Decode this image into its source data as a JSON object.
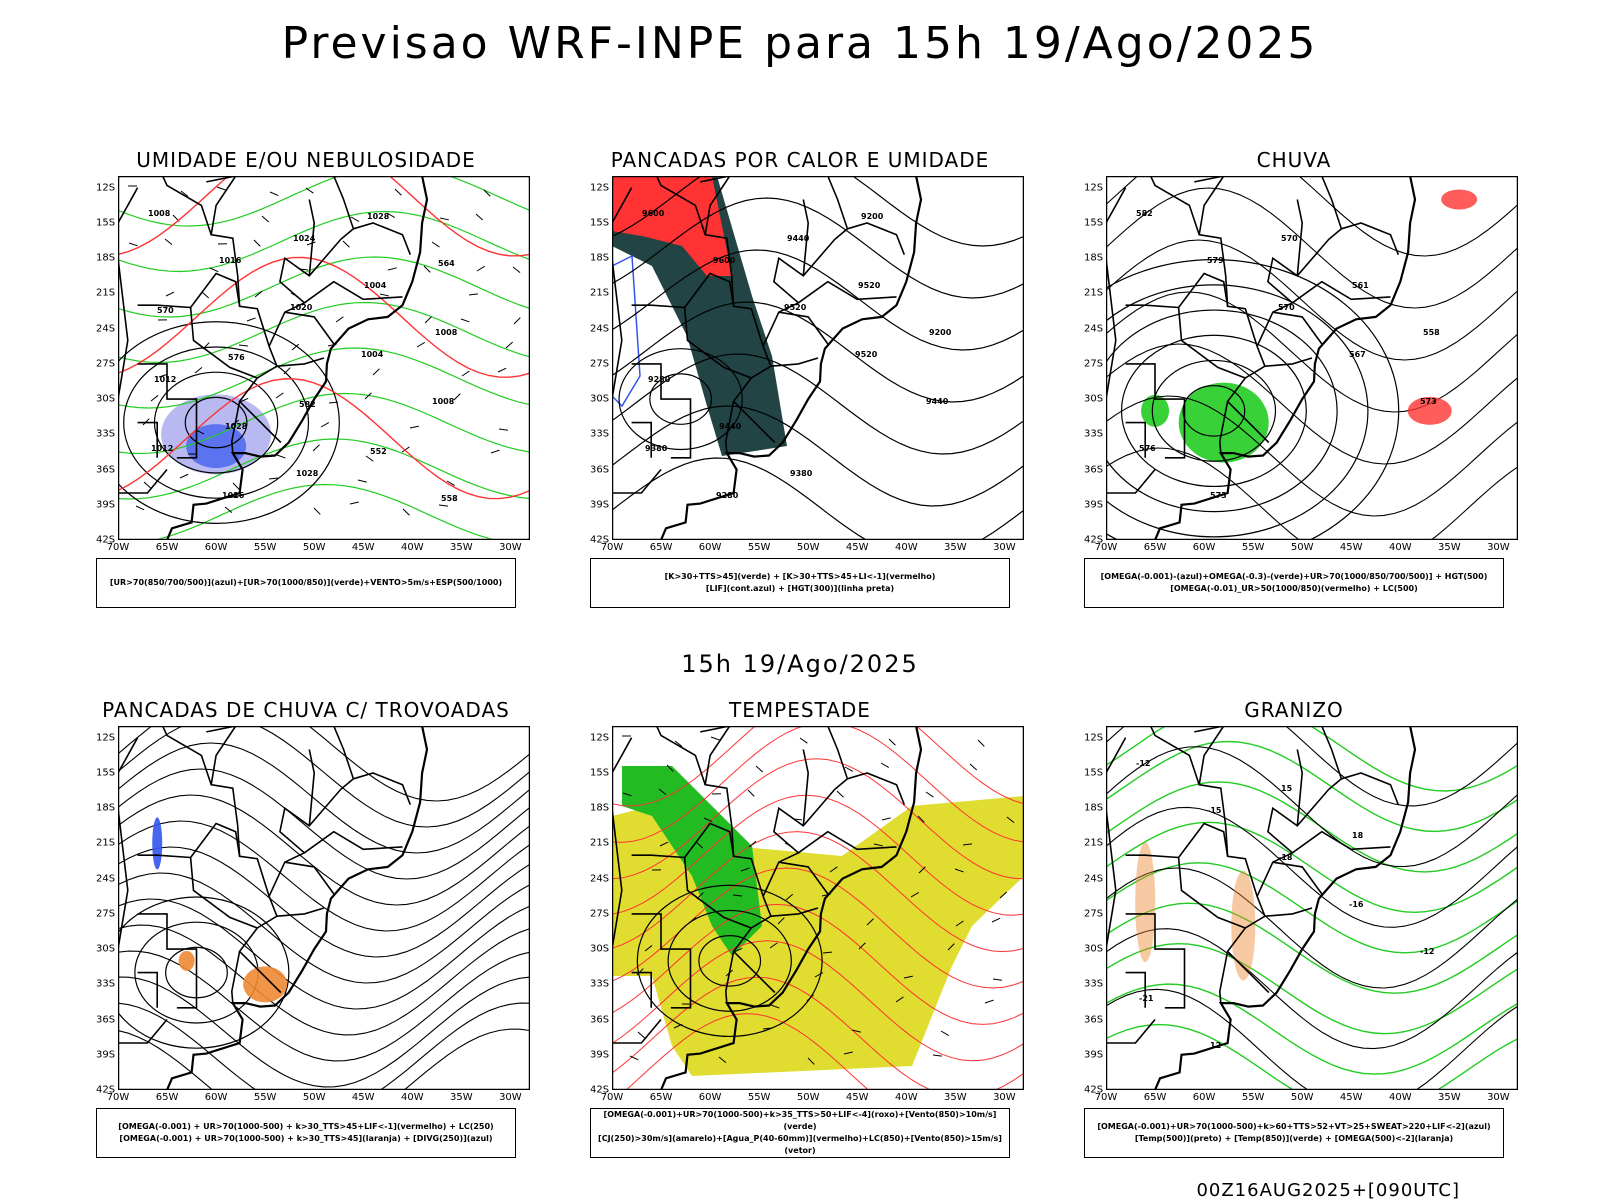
{
  "header": {
    "title": "Previsao WRF-INPE  para 15h 19/Ago/2025",
    "mid_title": "15h 19/Ago/2025",
    "footer_stamp": "00Z16AUG2025+[090UTC]"
  },
  "axes": {
    "lat_labels": [
      "12S",
      "15S",
      "18S",
      "21S",
      "24S",
      "27S",
      "30S",
      "33S",
      "36S",
      "39S",
      "42S"
    ],
    "lon_labels": [
      "70W",
      "65W",
      "60W",
      "55W",
      "50W",
      "45W",
      "40W",
      "35W",
      "30W"
    ]
  },
  "colors": {
    "green": "#22cc22",
    "red": "#ff3333",
    "blue": "#3355ee",
    "lavender": "#a8a8ee",
    "darkteal": "#224444",
    "yellow": "#e0dc30",
    "orange": "#ee8833",
    "black": "#000000"
  },
  "panels": [
    {
      "id": "umidade",
      "title": "UMIDADE E/OU NEBULOSIDADE",
      "legend": [
        "[UR>70(850/700/500)](azul)+[UR>70(1000/850)](verde)+VENTO>5m/s+ESP(500/1000)"
      ],
      "contour_labels": [
        "1008",
        "1016",
        "1020",
        "1004",
        "1008",
        "1012",
        "1016",
        "1024",
        "1004",
        "1008",
        "1012",
        "1028",
        "1028",
        "1028",
        "564",
        "570",
        "576",
        "582",
        "552",
        "558"
      ]
    },
    {
      "id": "pancadas",
      "title": "PANCADAS POR CALOR E UMIDADE",
      "legend": [
        "[K>30+TTS>45](verde) + [K>30+TTS>45+LI<-1](vermelho)",
        "[LIF](cont.azul) + [HGT(300)](linha preta)"
      ],
      "contour_labels": [
        "9600",
        "9600",
        "9520",
        "9520",
        "9440",
        "9380",
        "9280",
        "9440",
        "9520",
        "9200",
        "9280",
        "9440",
        "9380",
        "9200"
      ]
    },
    {
      "id": "chuva",
      "title": "CHUVA",
      "legend": [
        "[OMEGA(-0.001)-(azul)+OMEGA(-0.3)-(verde)+UR>70(1000/850/700/500)] + HGT(500)",
        "[OMEGA(-0.01)_UR>50(1000/850)(vermelho) + LC(500)"
      ],
      "contour_labels": [
        "582",
        "579",
        "570",
        "567",
        "573",
        "576",
        "573",
        "570",
        "561",
        "558"
      ]
    },
    {
      "id": "trovoadas",
      "title": "PANCADAS DE CHUVA C/ TROVOADAS",
      "legend": [
        "[OMEGA(-0.001) + UR>70(1000-500) + k>30_TTS>45+LIF<-1](vermelho) + LC(250)",
        "[OMEGA(-0.001) + UR>70(1000-500) + k>30_TTS>45](laranja) + [DIVG(250)](azul)"
      ],
      "contour_labels": []
    },
    {
      "id": "tempestade",
      "title": "TEMPESTADE",
      "legend": [
        "[OMEGA(-0.001)+UR>70(1000-500)+k>35_TTS>50+LIF<-4](roxo)+[Vento(850)>10m/s](verde)",
        "[CJ(250)>30m/s](amarelo)+[Agua_P(40-60mm)](vermelho)+LC(850)+[Vento(850)>15m/s](vetor)"
      ],
      "contour_labels": []
    },
    {
      "id": "granizo",
      "title": "GRANIZO",
      "legend": [
        "[OMEGA(-0.001)+UR>70(1000-500)+k>60+TTS>52+VT>25+SWEAT>220+LIF<-2](azul)",
        "[Temp(500)](preto) + [Temp(850)](verde) + [OMEGA(500)<-2](laranja)"
      ],
      "contour_labels": [
        "-12",
        "-15",
        "-18",
        "-16",
        "-12",
        "-21",
        "12",
        "15",
        "18"
      ]
    }
  ]
}
